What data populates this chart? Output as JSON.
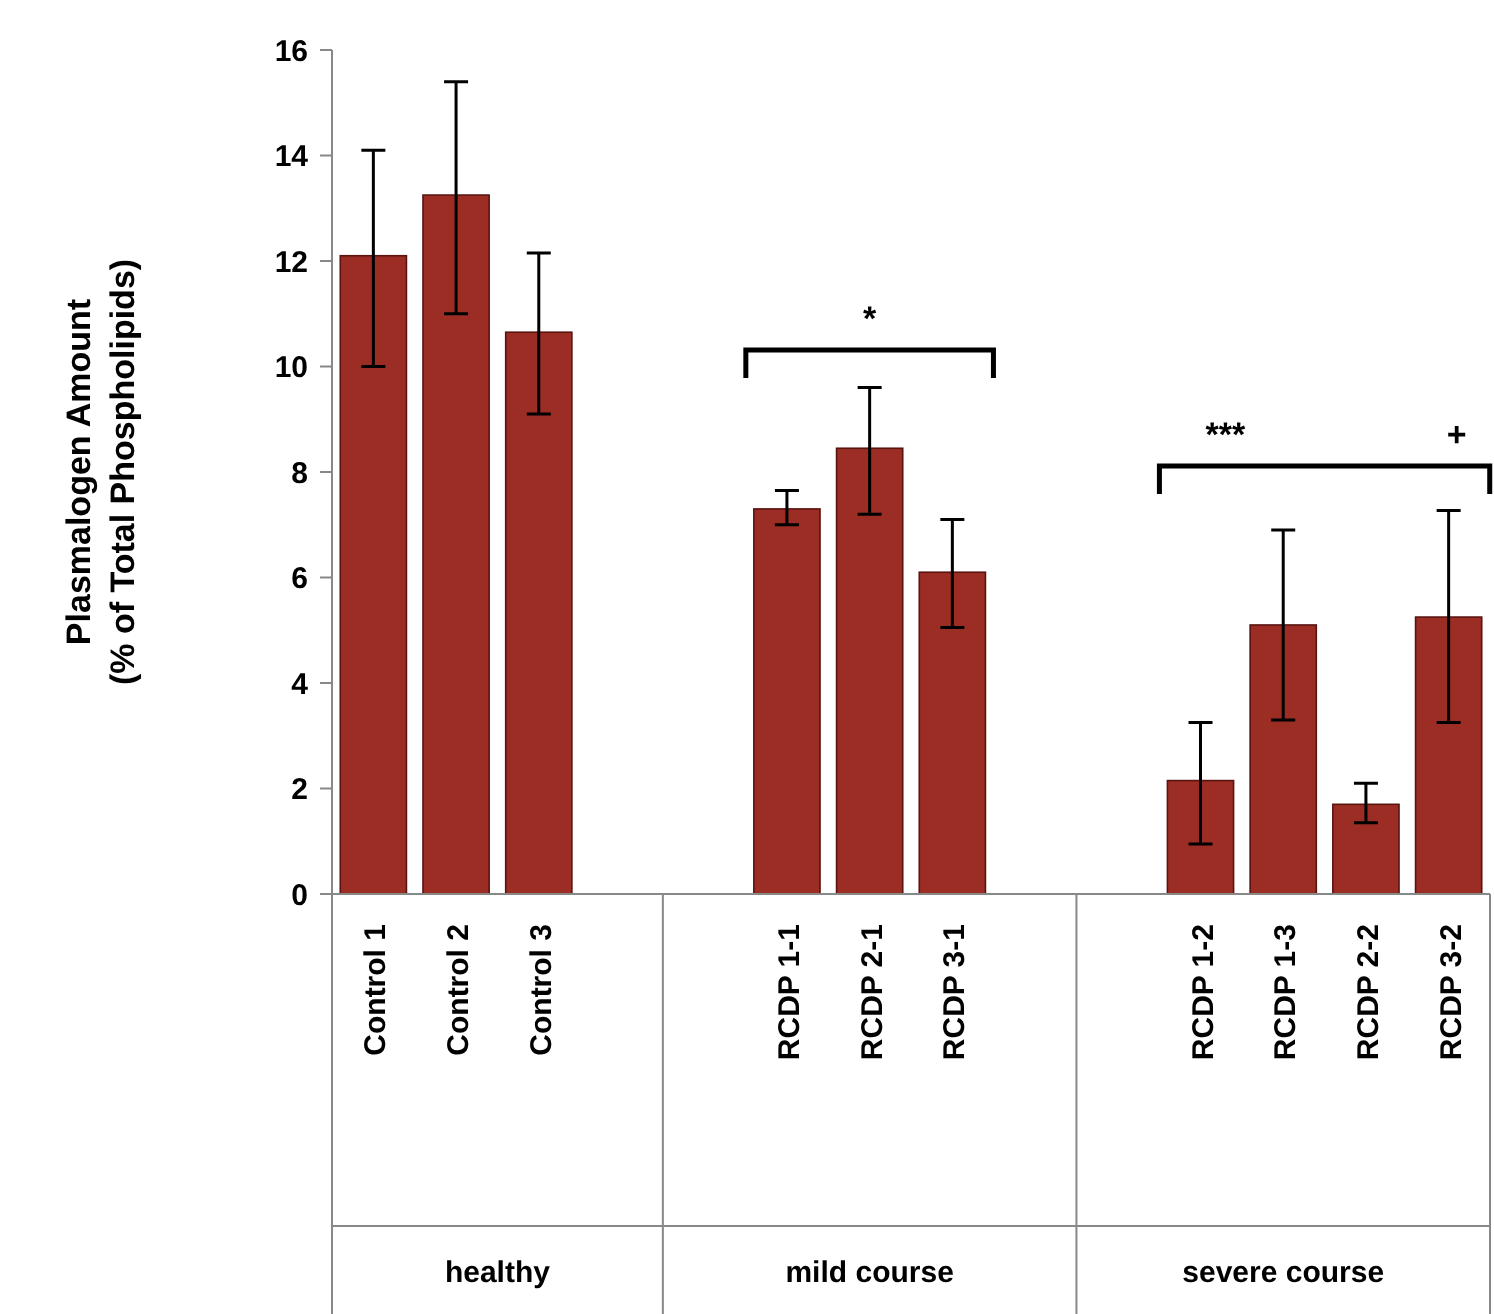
{
  "chart_data": {
    "type": "bar",
    "ylabel": "Plasmalogen Amount\n(% of Total Phospholipids)",
    "categories": [
      "Control 1",
      "Control 2",
      "Control 3",
      null,
      null,
      "RCDP 1-1",
      "RCDP 2-1",
      "RCDP 3-1",
      null,
      null,
      "RCDP 1-2",
      "RCDP 1-3",
      "RCDP 2-2",
      "RCDP 3-2"
    ],
    "values": [
      12.1,
      13.25,
      10.65,
      null,
      null,
      7.3,
      8.45,
      6.1,
      null,
      null,
      2.15,
      5.1,
      1.7,
      5.25
    ],
    "errors": [
      [
        10.0,
        14.1
      ],
      [
        11.0,
        15.4
      ],
      [
        9.1,
        12.15
      ],
      null,
      null,
      [
        7.0,
        7.65
      ],
      [
        7.2,
        9.6
      ],
      [
        5.05,
        7.1
      ],
      null,
      null,
      [
        0.95,
        3.25
      ],
      [
        3.3,
        6.9
      ],
      [
        1.35,
        2.1
      ],
      [
        3.25,
        7.27
      ]
    ],
    "color": "#9b2d24",
    "ylim": [
      0,
      16
    ],
    "yticks": [
      0,
      2,
      4,
      6,
      8,
      10,
      12,
      14,
      16
    ],
    "grid": false,
    "annotations": [
      "healthy",
      "mild course",
      "severe course",
      "*",
      "***",
      "+"
    ]
  }
}
